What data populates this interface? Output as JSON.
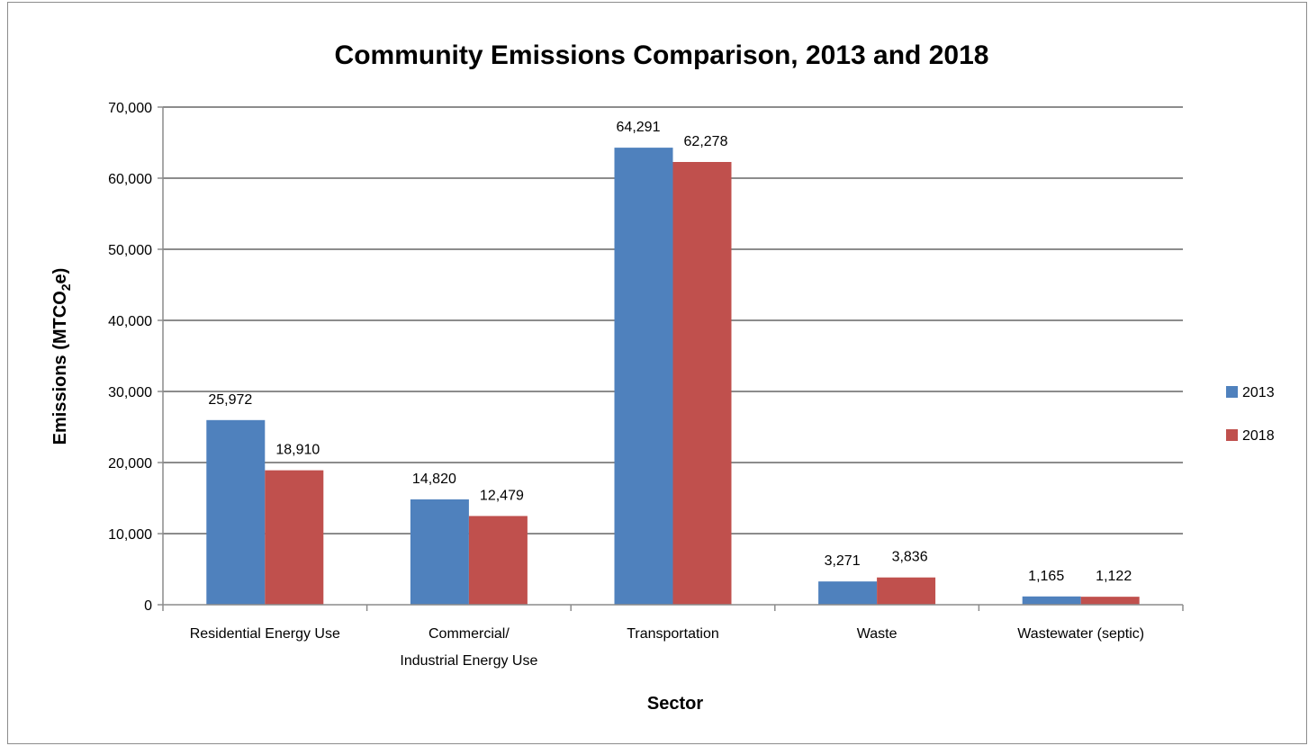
{
  "chart_data": {
    "type": "bar",
    "title": "Community Emissions Comparison, 2013 and 2018",
    "xlabel": "Sector",
    "ylabel_main": "Emissions (MTCO",
    "ylabel_sub": "2",
    "ylabel_end": "e)",
    "categories": [
      [
        "Residential Energy Use"
      ],
      [
        "Commercial/",
        "Industrial Energy Use"
      ],
      [
        "Transportation"
      ],
      [
        "Waste"
      ],
      [
        "Wastewater (septic)"
      ]
    ],
    "series": [
      {
        "name": "2013",
        "color": "#4f81bd",
        "values": [
          25972,
          14820,
          64291,
          3271,
          1165
        ],
        "labels": [
          "25,972",
          "14,820",
          "64,291",
          "3,271",
          "1,165"
        ]
      },
      {
        "name": "2018",
        "color": "#c0504d",
        "values": [
          18910,
          12479,
          62278,
          3836,
          1122
        ],
        "labels": [
          "18,910",
          "12,479",
          "62,278",
          "3,836",
          "1,122"
        ]
      }
    ],
    "ylim": [
      0,
      70000
    ],
    "yticks": [
      0,
      10000,
      20000,
      30000,
      40000,
      50000,
      60000,
      70000
    ],
    "ytick_labels": [
      "0",
      "10,000",
      "20,000",
      "30,000",
      "40,000",
      "50,000",
      "60,000",
      "70,000"
    ],
    "grid": true,
    "legend_position": "right"
  }
}
